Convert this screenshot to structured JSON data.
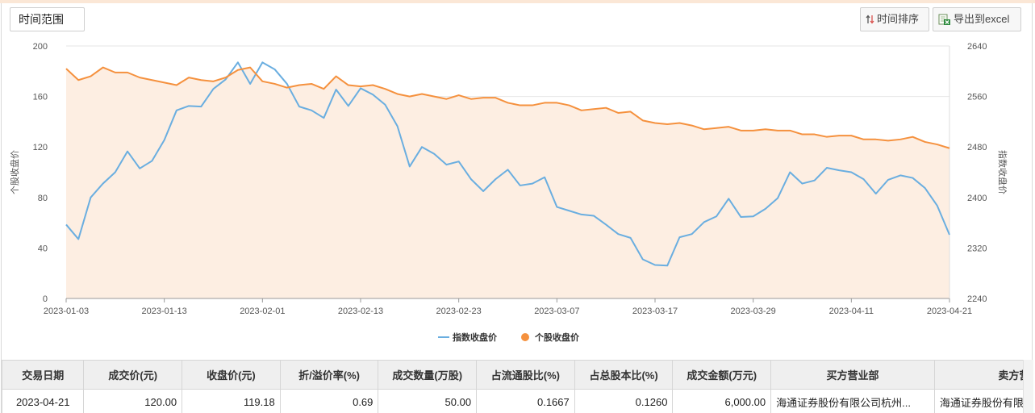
{
  "toolbar": {
    "time_range_label": "时间范围",
    "sort_label": "时间排序",
    "export_label": "导出到excel"
  },
  "chart_data": {
    "type": "line",
    "left_axis": {
      "label": "个股收盘价",
      "min": 0,
      "max": 200,
      "ticks": [
        0,
        40,
        80,
        120,
        160,
        200
      ]
    },
    "right_axis": {
      "label": "指数收盘价",
      "min": 2240,
      "max": 2640,
      "ticks": [
        2240,
        2320,
        2400,
        2480,
        2560,
        2640
      ]
    },
    "x_tick_labels": [
      "2023-01-03",
      "2023-01-13",
      "2023-02-01",
      "2023-02-13",
      "2023-02-23",
      "2023-03-07",
      "2023-03-17",
      "2023-03-29",
      "2023-04-11",
      "2023-04-21"
    ],
    "x_tick_index": [
      0,
      8,
      16,
      24,
      32,
      40,
      48,
      56,
      64,
      72
    ],
    "series": [
      {
        "name": "指数收盘价",
        "axis": "right",
        "color": "#6aaee0",
        "values": [
          2357,
          2334,
          2400,
          2422,
          2440,
          2473,
          2446,
          2458,
          2491,
          2538,
          2545,
          2544,
          2572,
          2587,
          2614,
          2580,
          2614,
          2603,
          2580,
          2544,
          2538,
          2526,
          2571,
          2545,
          2573,
          2563,
          2547,
          2513,
          2449,
          2480,
          2469,
          2452,
          2457,
          2429,
          2410,
          2429,
          2444,
          2419,
          2422,
          2432,
          2385,
          2379,
          2373,
          2371,
          2357,
          2342,
          2336,
          2302,
          2293,
          2292,
          2337,
          2342,
          2361,
          2370,
          2398,
          2369,
          2370,
          2382,
          2399,
          2440,
          2422,
          2427,
          2447,
          2443,
          2440,
          2429,
          2406,
          2428,
          2435,
          2431,
          2415,
          2387,
          2341
        ]
      },
      {
        "name": "个股收盘价",
        "axis": "left",
        "color": "#f5913e",
        "values": [
          182,
          173,
          176,
          183,
          179,
          179,
          175,
          173,
          171,
          169,
          175,
          173,
          172,
          175,
          181,
          183,
          172,
          170,
          167,
          169,
          170,
          166,
          176,
          169,
          168,
          169,
          166,
          162,
          160,
          162,
          160,
          158,
          161,
          158,
          159,
          159,
          155,
          153,
          153,
          155,
          155,
          153,
          149,
          150,
          151,
          147,
          148,
          141,
          139,
          138,
          139,
          137,
          134,
          135,
          136,
          133,
          133,
          134,
          133,
          133,
          130,
          130,
          128,
          129,
          129,
          126,
          126,
          125,
          126,
          128,
          124,
          122,
          119
        ]
      }
    ],
    "legend": "bottom-center"
  },
  "table": {
    "headers": [
      "交易日期",
      "成交价(元)",
      "收盘价(元)",
      "折/溢价率(%)",
      "成交数量(万股)",
      "占流通股比(%)",
      "占总股本比(%)",
      "成交金额(万元)",
      "买方营业部",
      "卖方营业部"
    ],
    "rows": [
      [
        "2023-04-21",
        "120.00",
        "119.18",
        "0.69",
        "50.00",
        "0.1667",
        "0.1260",
        "6,000.00",
        "海通证券股份有限公司杭州...",
        "海通证券股份有限公司"
      ]
    ]
  }
}
